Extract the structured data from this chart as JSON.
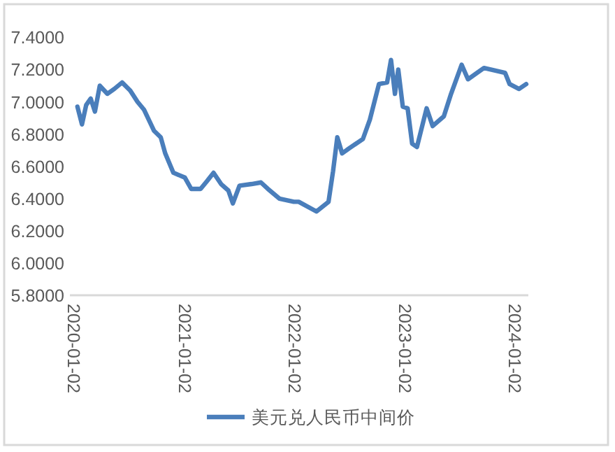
{
  "chart_data": {
    "type": "line",
    "x": [
      "2020-01-12",
      "2020-01-27",
      "2020-02-10",
      "2020-02-25",
      "2020-03-10",
      "2020-03-26",
      "2020-04-20",
      "2020-05-13",
      "2020-06-08",
      "2020-07-05",
      "2020-07-29",
      "2020-08-20",
      "2020-09-22",
      "2020-10-14",
      "2020-10-29",
      "2020-11-25",
      "2021-01-02",
      "2021-01-23",
      "2021-02-23",
      "2021-03-17",
      "2021-04-07",
      "2021-05-02",
      "2021-05-26",
      "2021-06-10",
      "2021-07-02",
      "2021-08-11",
      "2021-09-11",
      "2021-10-04",
      "2021-11-11",
      "2021-12-29",
      "2022-01-14",
      "2022-03-14",
      "2022-04-23",
      "2022-05-08",
      "2022-05-22",
      "2022-06-07",
      "2022-06-29",
      "2022-08-15",
      "2022-09-07",
      "2022-10-07",
      "2022-11-03",
      "2022-11-16",
      "2022-11-29",
      "2022-12-10",
      "2022-12-25",
      "2023-01-10",
      "2023-01-25",
      "2023-02-10",
      "2023-03-14",
      "2023-04-03",
      "2023-05-10",
      "2023-06-03",
      "2023-07-08",
      "2023-07-29",
      "2023-08-28",
      "2023-09-20",
      "2023-11-29",
      "2023-12-14",
      "2024-01-14",
      "2024-02-07"
    ],
    "series": [
      {
        "name": "美元兑人民币中间价",
        "color": "#4a7ebb",
        "values": [
          6.97,
          6.86,
          6.98,
          7.02,
          6.94,
          7.1,
          7.05,
          7.08,
          7.12,
          7.07,
          7.0,
          6.95,
          6.82,
          6.78,
          6.68,
          6.56,
          6.53,
          6.46,
          6.46,
          6.51,
          6.56,
          6.49,
          6.45,
          6.37,
          6.48,
          6.49,
          6.5,
          6.46,
          6.4,
          6.38,
          6.38,
          6.32,
          6.38,
          6.57,
          6.78,
          6.68,
          6.71,
          6.77,
          6.89,
          7.11,
          7.12,
          7.26,
          7.05,
          7.2,
          6.97,
          6.96,
          6.74,
          6.72,
          6.96,
          6.85,
          6.91,
          7.05,
          7.23,
          7.14,
          7.18,
          7.21,
          7.18,
          7.11,
          7.08,
          7.11
        ]
      }
    ],
    "xlim": [
      "2019-12-18",
      "2024-02-14"
    ],
    "xticks": [
      "2020-01-02",
      "2021-01-02",
      "2022-01-02",
      "2023-01-02",
      "2024-01-02"
    ],
    "ylim": [
      5.8,
      7.4
    ],
    "yticks": [
      {
        "value": 5.8,
        "label": "5.8000"
      },
      {
        "value": 6.0,
        "label": "6.0000"
      },
      {
        "value": 6.2,
        "label": "6.2000"
      },
      {
        "value": 6.4,
        "label": "6.4000"
      },
      {
        "value": 6.6,
        "label": "6.6000"
      },
      {
        "value": 6.8,
        "label": "6.8000"
      },
      {
        "value": 7.0,
        "label": "7.0000"
      },
      {
        "value": 7.2,
        "label": "7.2000"
      },
      {
        "value": 7.4,
        "label": "7.4000"
      }
    ],
    "grid": false,
    "legend": "bottom",
    "line_style": "solid"
  }
}
